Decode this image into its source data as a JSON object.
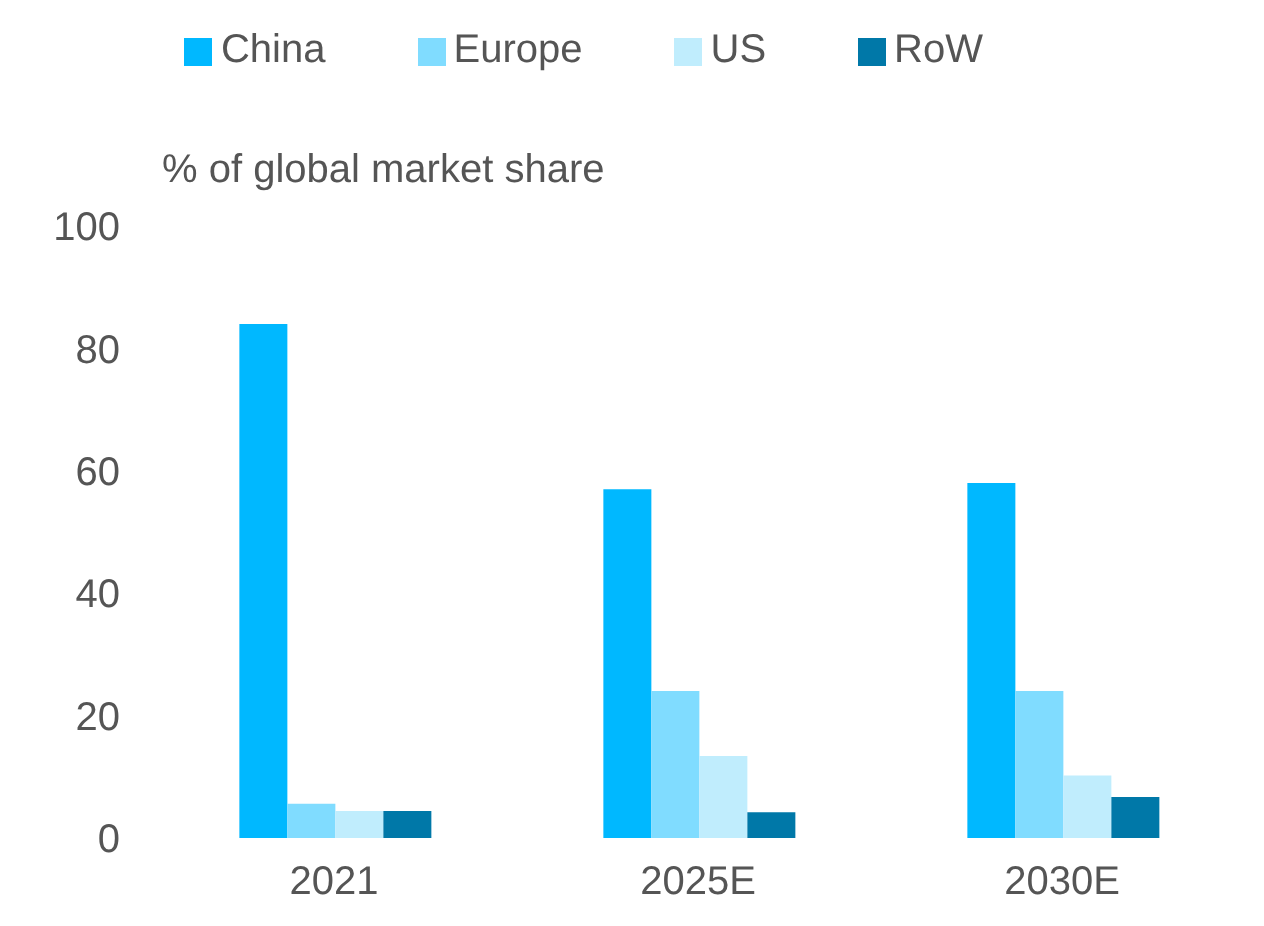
{
  "chart_data": {
    "type": "bar",
    "ylabel": "% of global market share",
    "categories": [
      "2021",
      "2025E",
      "2030E"
    ],
    "series": [
      {
        "name": "China",
        "color": "#00b8ff",
        "values": [
          84,
          57,
          58
        ]
      },
      {
        "name": "Europe",
        "color": "#80dcff",
        "values": [
          5.6,
          24,
          24
        ]
      },
      {
        "name": "US",
        "color": "#c0edfd",
        "values": [
          4.4,
          13.4,
          10.2
        ]
      },
      {
        "name": "RoW",
        "color": "#0078a8",
        "values": [
          4.4,
          4.2,
          6.7
        ]
      }
    ],
    "ylim": [
      0,
      100
    ],
    "yticks": [
      0,
      20,
      40,
      60,
      80,
      100
    ],
    "grid": false,
    "legend": "top"
  }
}
